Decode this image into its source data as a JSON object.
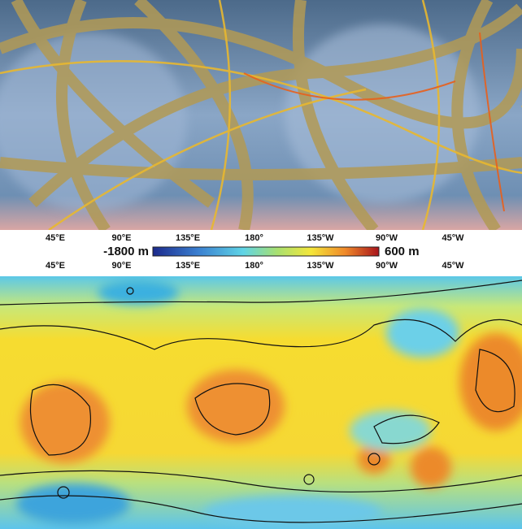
{
  "top_map": {
    "longitude_labels": [
      "45°E",
      "90°E",
      "135°E",
      "180°",
      "135°W",
      "90°W",
      "45°W"
    ]
  },
  "colorbar": {
    "min_label": "-1800 m",
    "max_label": "600 m"
  },
  "bottom_map": {
    "longitude_labels": [
      "45°E",
      "90°E",
      "135°E",
      "180°",
      "135°W",
      "90°W",
      "45°W"
    ]
  }
}
